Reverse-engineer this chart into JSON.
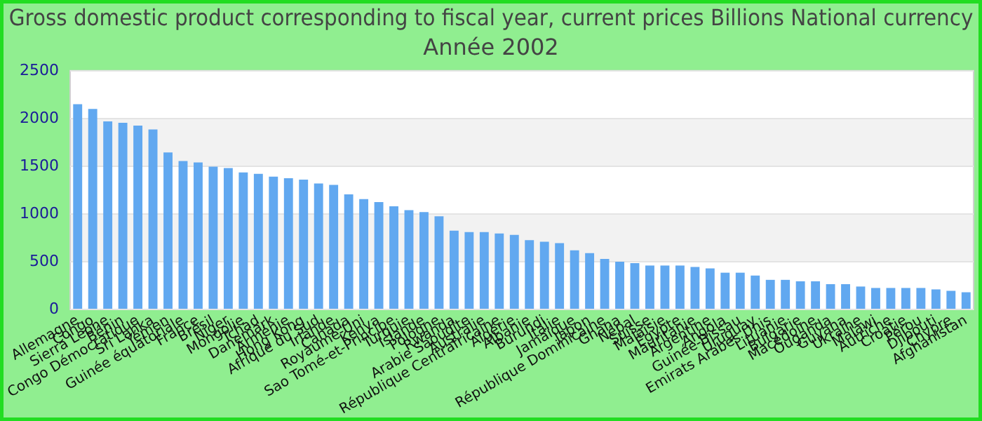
{
  "chart_data": {
    "type": "bar",
    "title": "Gross domestic product corresponding to fiscal year, current prices Billions National currency",
    "subtitle": "Année 2002",
    "categories": [
      "Allemagne",
      "Congo",
      "Sierra Leone",
      "Bénin",
      "Congo Démocratique",
      "Sri Lanka",
      "Yémen",
      "Guinée équatoriale",
      "France",
      "Brésil",
      "Niger",
      "Mongolie",
      "Tchad",
      "Danemark",
      "Arménie",
      "Hong Kong",
      "Afrique du Sud",
      "Irlande",
      "Canada",
      "Royaume-Uni",
      "Kenya",
      "Sao Tomé-et-Principe",
      "Turquie",
      "Islande",
      "Pologne",
      "Rwanda",
      "Arabie Saoudite",
      "Australie",
      "République Centrafricaine",
      "Algérie",
      "Albanie",
      "Burundi",
      "Italie",
      "Jamaïque",
      "Japon",
      "République Dominicaine",
      "Ghana",
      "Népal",
      "Suisse",
      "Malaisie",
      "Égypte",
      "Mauritanie",
      "Argentine",
      "Angola",
      "Guinée-Bissau",
      "Uruguay",
      "Emirats Arabes Unis",
      "Lituanie",
      "Bulgarie",
      "Macédoine",
      "Ouganda",
      "Guyana",
      "Ukraine",
      "Malawi",
      "Autriche",
      "Croatie",
      "Pérou",
      "Djibouti",
      "Chypre",
      "Afghanistan"
    ],
    "values": [
      2150,
      2100,
      1970,
      1955,
      1925,
      1885,
      1645,
      1555,
      1540,
      1495,
      1480,
      1435,
      1420,
      1390,
      1375,
      1360,
      1320,
      1305,
      1205,
      1155,
      1125,
      1080,
      1040,
      1020,
      975,
      825,
      810,
      810,
      795,
      780,
      725,
      710,
      695,
      620,
      590,
      530,
      500,
      485,
      460,
      460,
      460,
      445,
      430,
      385,
      385,
      355,
      310,
      310,
      295,
      295,
      265,
      265,
      240,
      225,
      225,
      225,
      225,
      210,
      195,
      180
    ],
    "color": "#61a8f0",
    "ylim": [
      0,
      2500
    ],
    "yticks": [
      0,
      500,
      1000,
      1500,
      2000,
      2500
    ],
    "grid": "y"
  }
}
